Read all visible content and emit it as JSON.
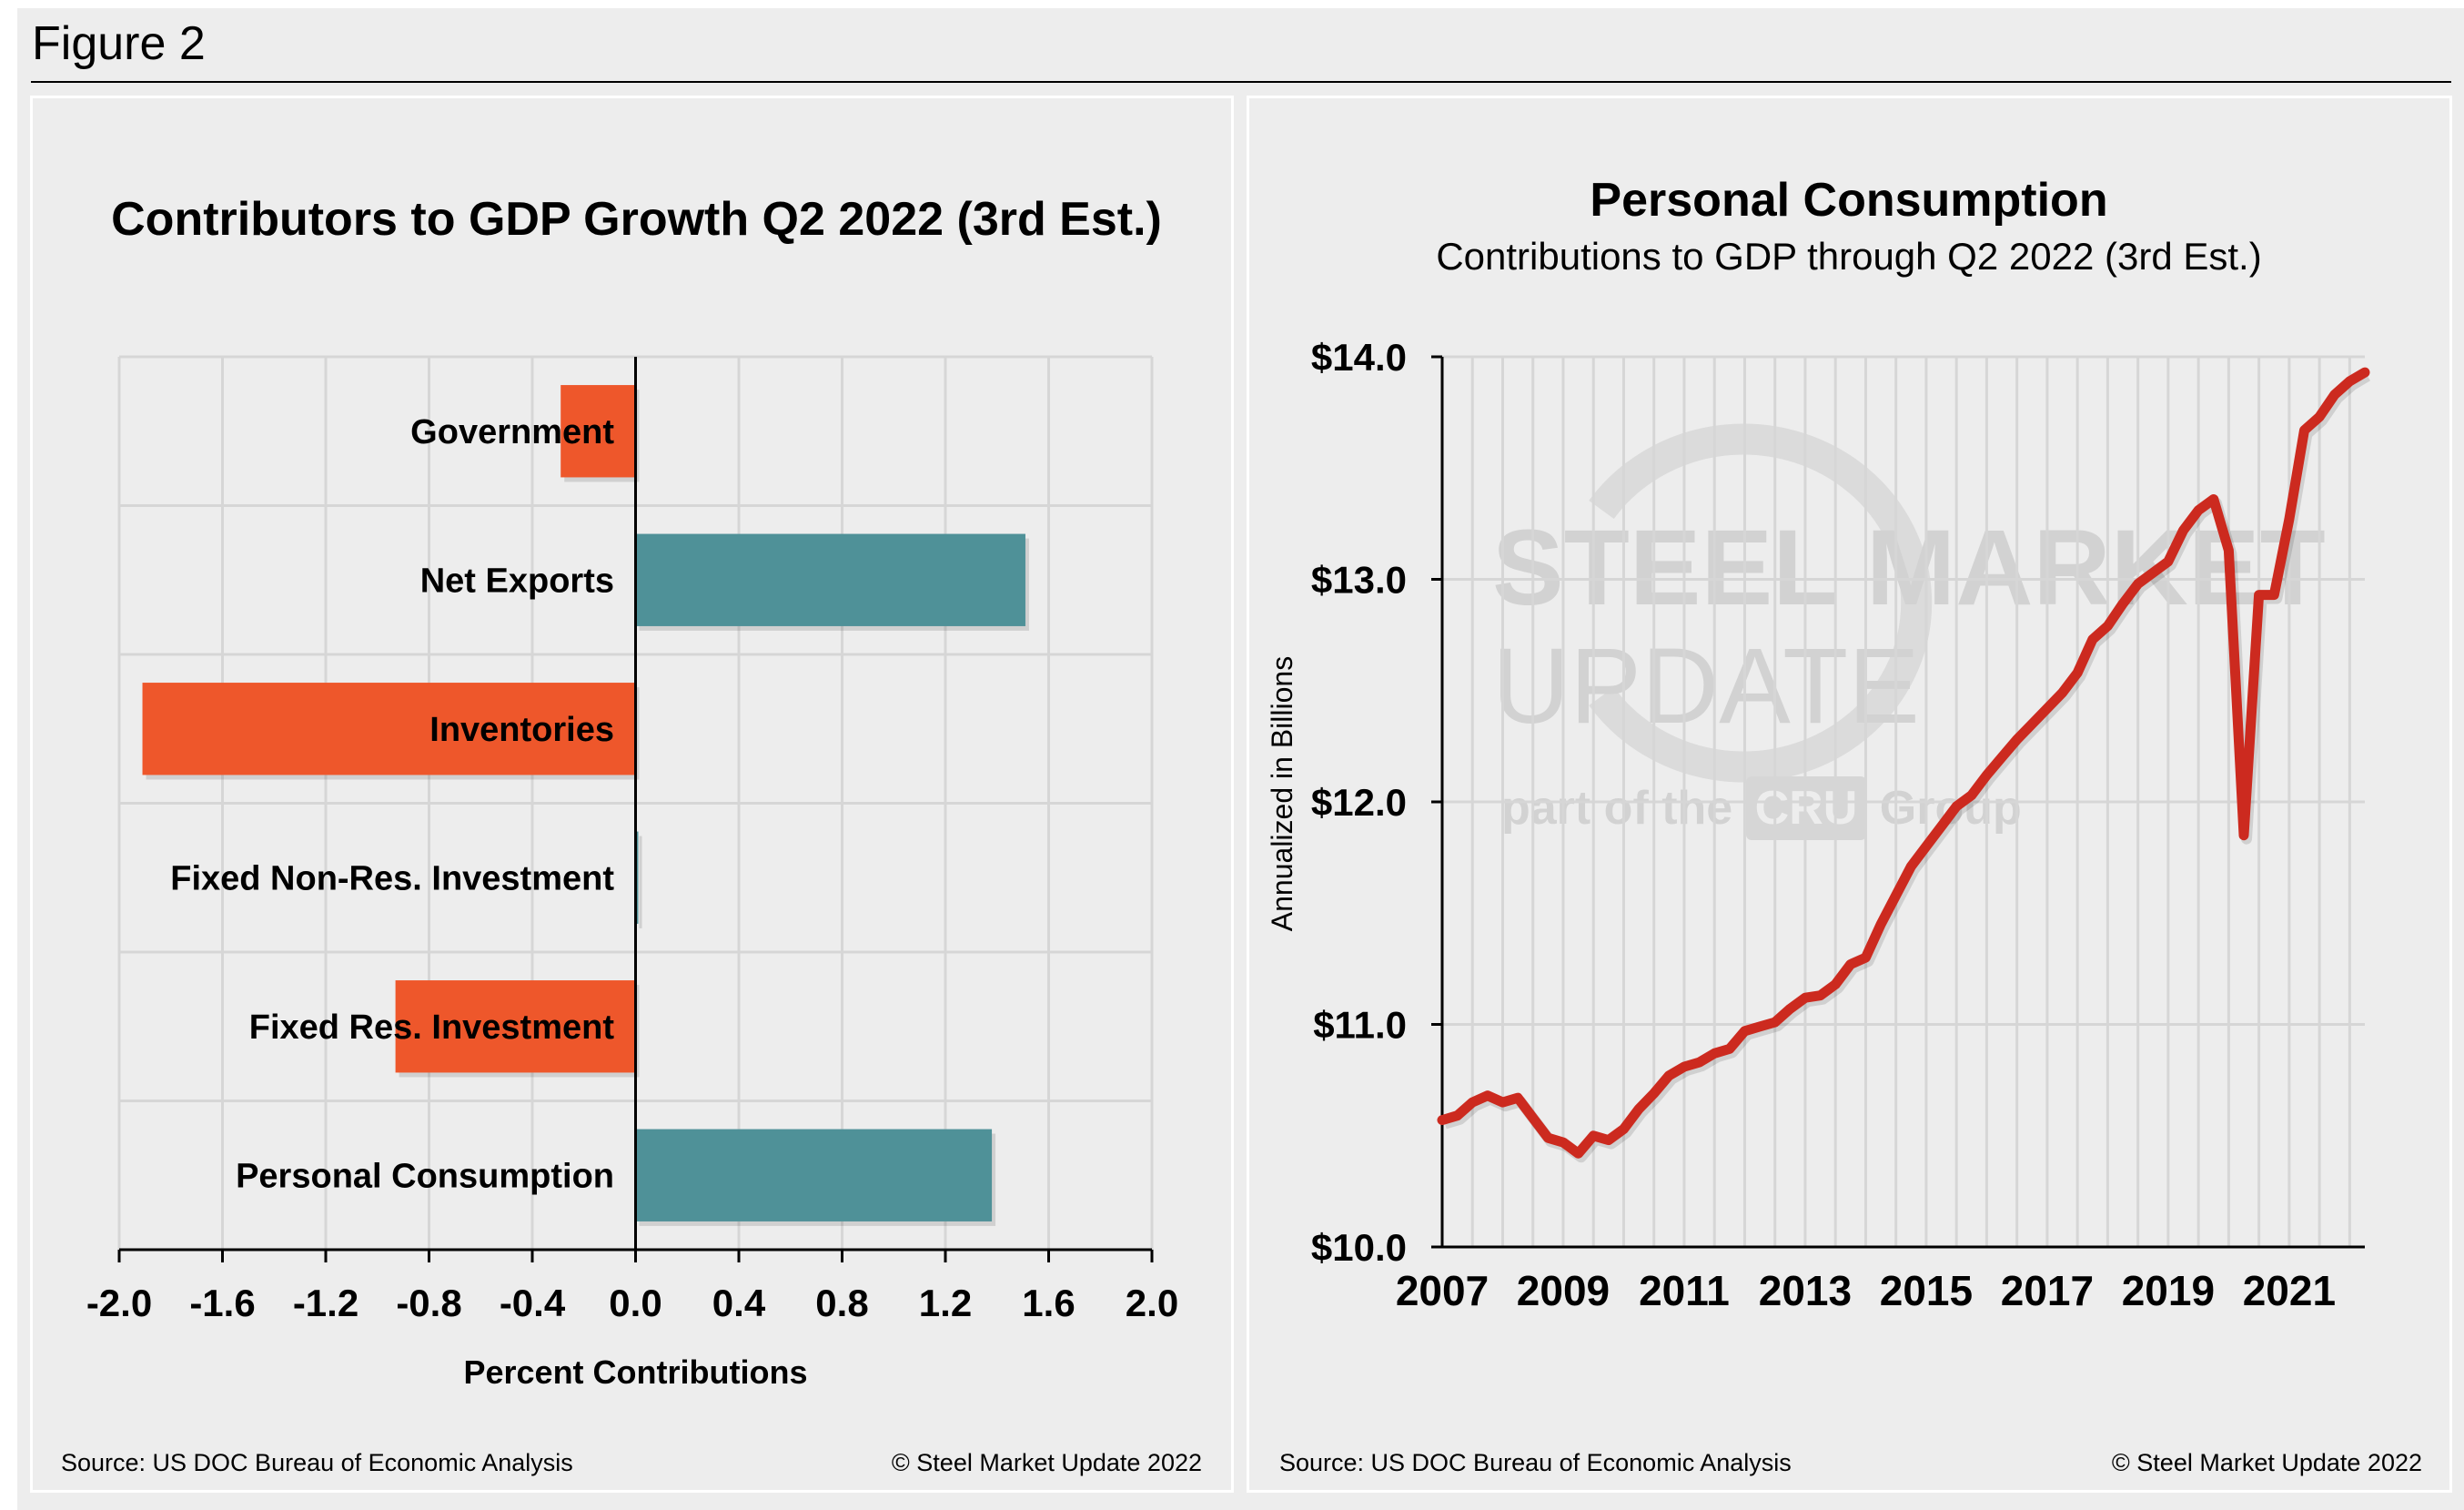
{
  "figure_title": "Figure 2",
  "watermark": {
    "line1_bold": "STEEL MARKET",
    "line1_light": "UPDATE",
    "line2_a": "part of the",
    "line2_logo": "CRU",
    "line2_b": "Group"
  },
  "chart_data": [
    {
      "type": "bar",
      "orientation": "horizontal",
      "title": "Contributors to GDP Growth Q2 2022 (3rd Est.)",
      "xlabel": "Percent Contributions",
      "ylabel": "",
      "xlim": [
        -2.0,
        2.0
      ],
      "xticks": [
        "-2.0",
        "-1.6",
        "-1.2",
        "-0.8",
        "-0.4",
        "0.0",
        "0.4",
        "0.8",
        "1.2",
        "1.6",
        "2.0"
      ],
      "grid": true,
      "categories": [
        "Government",
        "Net Exports",
        "Inventories",
        "Fixed Non-Res. Investment",
        "Fixed Res. Investment",
        "Personal Consumption"
      ],
      "values": [
        -0.29,
        1.51,
        -1.91,
        0.01,
        -0.93,
        1.38
      ],
      "colors": {
        "positive": "#4f9198",
        "negative": "#ee572b"
      },
      "source": "Source: US DOC Bureau of Economic Analysis",
      "copyright": "© Steel Market Update 2022"
    },
    {
      "type": "line",
      "title": "Personal Consumption",
      "subtitle": "Contributions to GDP through Q2 2022 (3rd Est.)",
      "xlabel": "",
      "ylabel": "Annualized in Billions",
      "ylim": [
        10.0,
        14.0
      ],
      "yticks": [
        "$10.0",
        "$11.0",
        "$12.0",
        "$13.0",
        "$14.0"
      ],
      "xticks": [
        "2007",
        "2009",
        "2011",
        "2013",
        "2015",
        "2017",
        "2019",
        "2021"
      ],
      "xlim": [
        2007.0,
        2022.25
      ],
      "grid": true,
      "color": "#cc2a1f",
      "x_start": "2007 Q1",
      "frequency": "quarterly",
      "values": [
        10.57,
        10.59,
        10.65,
        10.68,
        10.65,
        10.67,
        10.58,
        10.49,
        10.47,
        10.42,
        10.5,
        10.48,
        10.53,
        10.62,
        10.69,
        10.77,
        10.81,
        10.83,
        10.87,
        10.89,
        10.97,
        10.99,
        11.01,
        11.07,
        11.12,
        11.13,
        11.18,
        11.27,
        11.3,
        11.45,
        11.58,
        11.71,
        11.8,
        11.89,
        11.98,
        12.03,
        12.12,
        12.2,
        12.28,
        12.35,
        12.42,
        12.49,
        12.58,
        12.73,
        12.79,
        12.89,
        12.98,
        13.03,
        13.08,
        13.22,
        13.31,
        13.36,
        13.13,
        11.85,
        12.93,
        12.93,
        13.27,
        13.67,
        13.73,
        13.83,
        13.89,
        13.93
      ],
      "source": "Source: US DOC Bureau of Economic Analysis",
      "copyright": "© Steel Market Update 2022"
    }
  ]
}
